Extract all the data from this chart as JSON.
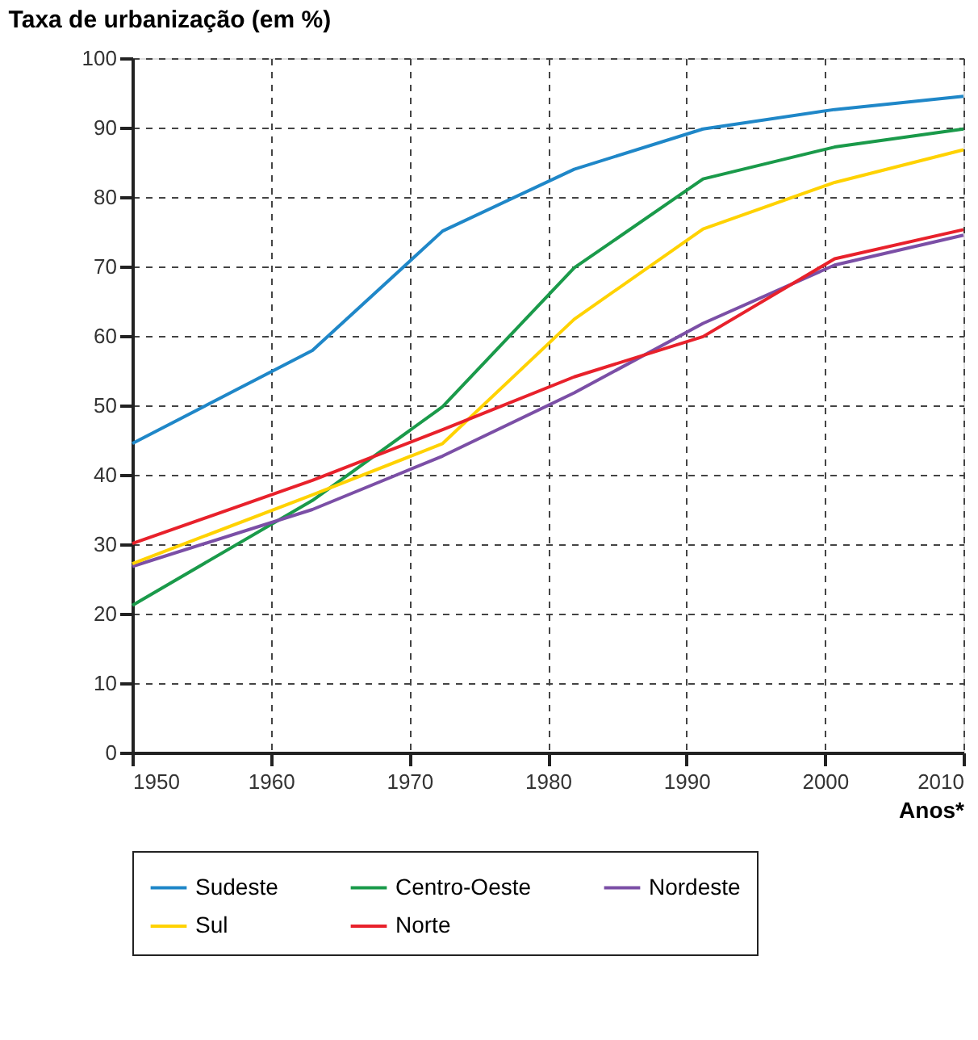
{
  "chart_data": {
    "type": "line",
    "title": "Taxa de urbanização (em %)",
    "xlabel": "Anos*",
    "x": [
      1950,
      1963,
      1972.4,
      1981.9,
      1991.2,
      2000.7,
      2010
    ],
    "series": [
      {
        "name": "Sudeste",
        "color": "#1f87c8",
        "values": [
          44.5,
          57.9,
          75.1,
          84.0,
          89.8,
          92.6,
          94.5
        ]
      },
      {
        "name": "Centro-Oeste",
        "color": "#1a9a4a",
        "values": [
          21.2,
          36.3,
          49.8,
          69.8,
          82.6,
          87.2,
          89.8
        ]
      },
      {
        "name": "Nordeste",
        "color": "#7b4fa6",
        "values": [
          26.8,
          35.0,
          42.7,
          51.8,
          61.8,
          70.2,
          74.5
        ]
      },
      {
        "name": "Sul",
        "color": "#ffd200",
        "values": [
          27.2,
          37.1,
          44.5,
          62.4,
          75.4,
          82.1,
          86.8
        ]
      },
      {
        "name": "Norte",
        "color": "#e8212b",
        "values": [
          30.1,
          39.2,
          46.5,
          54.1,
          59.9,
          71.1,
          75.3
        ]
      }
    ],
    "xlim": [
      1950,
      2010
    ],
    "xticks": [
      1950,
      1960,
      1970,
      1980,
      1990,
      2000,
      2010
    ],
    "ylim": [
      0,
      100
    ],
    "yticks": [
      0,
      10,
      20,
      30,
      40,
      50,
      60,
      70,
      80,
      90,
      100
    ],
    "grid": true,
    "legend": "bottom",
    "marker": "none",
    "line_style": "solid"
  }
}
